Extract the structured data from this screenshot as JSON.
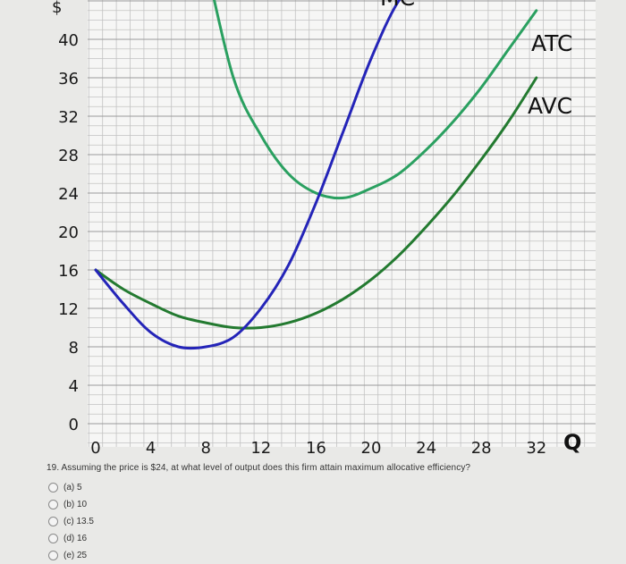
{
  "chart_data": {
    "type": "line",
    "x_ticks": [
      "0",
      "4",
      "8",
      "12",
      "16",
      "20",
      "24",
      "28",
      "32"
    ],
    "y_ticks": [
      "0",
      "4",
      "8",
      "12",
      "16",
      "20",
      "24",
      "28",
      "32",
      "36",
      "40"
    ],
    "y_axis_symbol_partial": "$",
    "x_axis_label": "Q",
    "xlim": [
      0,
      35
    ],
    "ylim": [
      0,
      44
    ],
    "grid": true,
    "series": [
      {
        "name": "MC",
        "color": "#2424b8",
        "x": [
          0,
          2,
          4,
          6,
          8,
          10,
          12,
          14,
          16,
          18,
          20,
          22,
          24
        ],
        "y": [
          16,
          12.5,
          9.5,
          8,
          8,
          9,
          12,
          16.5,
          23,
          30.5,
          38,
          44,
          47
        ]
      },
      {
        "name": "ATC",
        "color": "#2aa060",
        "x": [
          8,
          10,
          12,
          14,
          16,
          18,
          20,
          22,
          24,
          26,
          28,
          30,
          32
        ],
        "y": [
          48,
          36,
          30,
          26,
          24,
          23.5,
          24.5,
          26,
          28.5,
          31.5,
          35,
          39,
          43
        ]
      },
      {
        "name": "AVC",
        "color": "#237a30",
        "x": [
          0,
          2,
          4,
          6,
          8,
          10,
          12,
          14,
          16,
          18,
          20,
          22,
          24,
          26,
          28,
          30,
          32
        ],
        "y": [
          16,
          14,
          12.5,
          11.2,
          10.5,
          10,
          10,
          10.5,
          11.5,
          13,
          15,
          17.5,
          20.5,
          23.8,
          27.5,
          31.5,
          36
        ]
      }
    ]
  },
  "question": {
    "text": "19. Assuming the price is $24, at what level of output does this firm attain maximum allocative efficiency?",
    "options": [
      "(a) 5",
      "(b) 10",
      "(c) 13.5",
      "(d) 16",
      "(e) 25"
    ]
  }
}
